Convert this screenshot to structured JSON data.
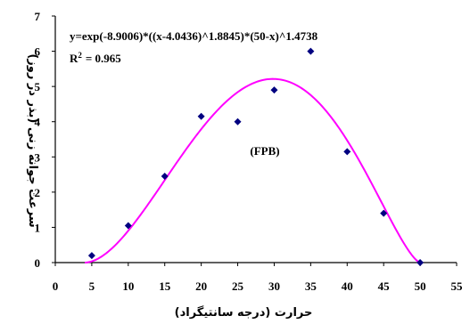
{
  "chart_data": {
    "type": "scatter",
    "xlabel": "حرارت (درجه سانتیگراد)",
    "ylabel": "سرعت جوانه زنی (بذر در روز)",
    "xlim": [
      0,
      55
    ],
    "ylim": [
      0,
      7
    ],
    "x_ticks": [
      "0",
      "5",
      "10",
      "15",
      "20",
      "25",
      "30",
      "35",
      "40",
      "45",
      "50",
      "55"
    ],
    "y_ticks": [
      "0",
      "1",
      "2",
      "3",
      "4",
      "5",
      "6",
      "7"
    ],
    "grid": false,
    "annotations": {
      "equation": "y=exp(-8.9006)*((x-4.0436)^1.8845)*(50-x)^1.4738",
      "r2_label": "R",
      "r2_superscript": "2",
      "r2_value": "=  0.965",
      "model_label": "(FPB)"
    },
    "series": [
      {
        "type": "scatter",
        "marker": "diamond",
        "color": "#000080",
        "x": [
          5,
          10,
          15,
          20,
          25,
          30,
          35,
          40,
          45,
          50
        ],
        "y": [
          0.2,
          1.05,
          2.45,
          4.15,
          4.0,
          4.9,
          6.0,
          3.15,
          1.4,
          0.0
        ]
      },
      {
        "type": "line",
        "color": "#ff00ff",
        "model": {
          "intercept_exp": -8.9006,
          "x0": 4.0436,
          "p1": 1.8845,
          "xmax": 50,
          "p2": 1.4738
        }
      }
    ]
  }
}
